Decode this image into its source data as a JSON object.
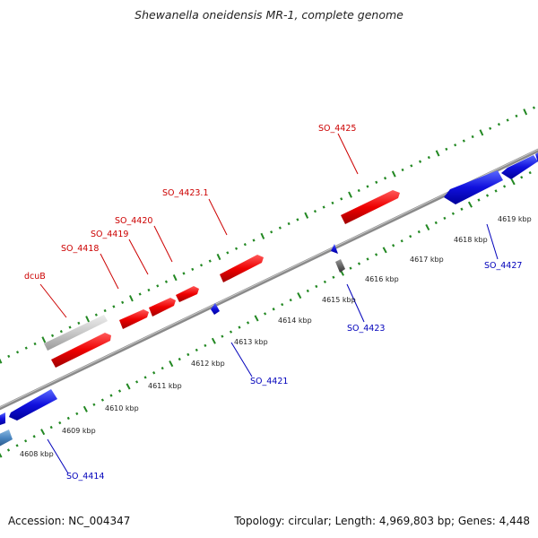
{
  "title": "Shewanella oneidensis MR-1, complete genome",
  "footer": {
    "accession": "Accession: NC_004347",
    "topology": "Topology: circular; Length: 4,969,803 bp; Genes: 4,448"
  },
  "colors": {
    "forward_gene": "#ee0000",
    "reverse_gene": "#1010dd",
    "pseudo_gene": "#c8c8c8",
    "other_gene": "#4a86c0",
    "backbone": "#8a8a8a",
    "tick": "#228822"
  },
  "kbp_labels": [
    "4608 kbp",
    "4609 kbp",
    "4610 kbp",
    "4611 kbp",
    "4612 kbp",
    "4613 kbp",
    "4614 kbp",
    "4615 kbp",
    "4616 kbp",
    "4617 kbp",
    "4618 kbp",
    "4619 kbp"
  ],
  "forward_gene_labels": [
    "dcuB",
    "SO_4418",
    "SO_4419",
    "SO_4420",
    "SO_4423.1",
    "SO_4425"
  ],
  "reverse_gene_labels": [
    "SO_4414",
    "SO_4421",
    "SO_4423",
    "SO_4427"
  ]
}
